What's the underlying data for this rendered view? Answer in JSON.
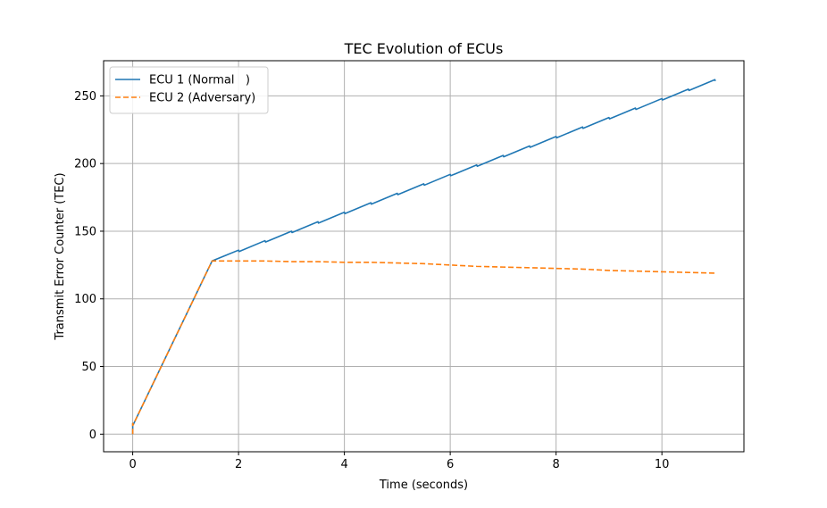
{
  "chart_data": {
    "type": "line",
    "title": "TEC Evolution of ECUs",
    "xlabel": "Time (seconds)",
    "ylabel": "Transmit Error Counter (TEC)",
    "xlim": [
      -0.55,
      11.55
    ],
    "ylim": [
      -13,
      276
    ],
    "xticks": [
      0,
      2,
      4,
      6,
      8,
      10
    ],
    "yticks": [
      0,
      50,
      100,
      150,
      200,
      250
    ],
    "grid": true,
    "legend_position": "top-left",
    "series": [
      {
        "name": "ECU 1 (Normal   )",
        "color": "#1f77b4",
        "linestyle": "solid",
        "x": [
          0,
          0,
          0.01,
          1.5,
          2.0,
          2.01,
          2.5,
          2.51,
          3.0,
          3.01,
          3.5,
          3.51,
          4.0,
          4.01,
          4.5,
          4.51,
          5.0,
          5.01,
          5.5,
          5.51,
          6.0,
          6.01,
          6.5,
          6.51,
          7.0,
          7.01,
          7.5,
          7.51,
          8.0,
          8.01,
          8.5,
          8.51,
          9.0,
          9.01,
          9.5,
          9.51,
          10.0,
          10.01,
          10.5,
          10.51,
          11.0,
          11.01
        ],
        "y": [
          0,
          8,
          7,
          128,
          136,
          135,
          143,
          142,
          150,
          149,
          157,
          156,
          164,
          163,
          171,
          170,
          178,
          177,
          185,
          184,
          192,
          191,
          199,
          198,
          206,
          205,
          213,
          212,
          220,
          219,
          227,
          226,
          234,
          233,
          241,
          240,
          248,
          247,
          255,
          254,
          262,
          261
        ]
      },
      {
        "name": "ECU 2 (Adversary)",
        "color": "#ff7f0e",
        "linestyle": "dashed",
        "x": [
          0,
          0,
          0.01,
          1.5,
          2.0,
          2.5,
          3.0,
          3.5,
          4.0,
          4.5,
          5.0,
          5.5,
          6.0,
          6.5,
          7.0,
          7.5,
          8.0,
          8.5,
          9.0,
          9.5,
          10.0,
          10.5,
          11.0
        ],
        "y": [
          0,
          8,
          7,
          128,
          128,
          128,
          127.5,
          127.5,
          127,
          127,
          126.5,
          126,
          125,
          124,
          123.5,
          123,
          122.5,
          122,
          121,
          120.5,
          120,
          119.5,
          119
        ]
      }
    ]
  }
}
